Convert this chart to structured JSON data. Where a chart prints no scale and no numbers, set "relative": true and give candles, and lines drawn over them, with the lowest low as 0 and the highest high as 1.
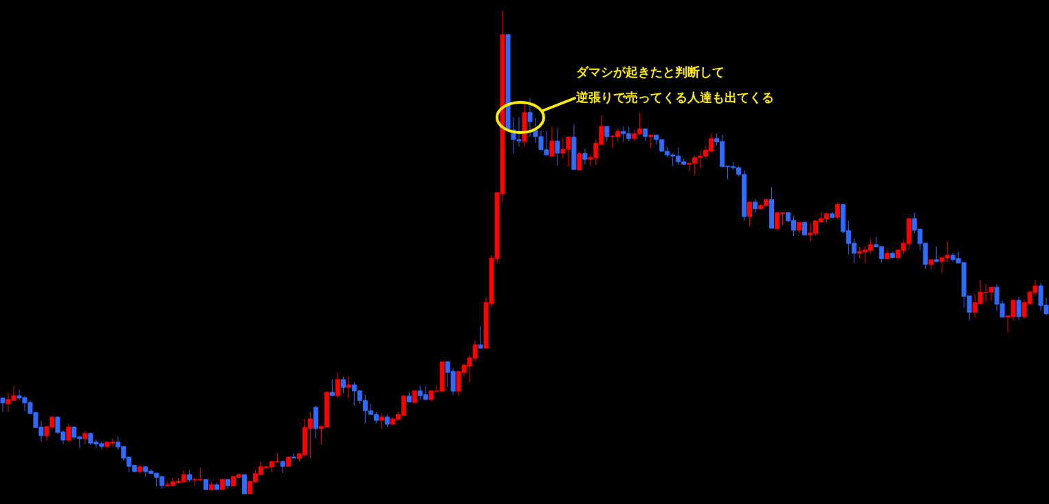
{
  "chart_data": {
    "type": "candlestick",
    "relative": true,
    "annotations": [
      "ダマシが起きたと判断して",
      "逆張りで売ってくる人達も出てくる"
    ],
    "categories": [
      null,
      null,
      null,
      null,
      null,
      null,
      null,
      null,
      null,
      null,
      null,
      null,
      null,
      null,
      null,
      null,
      null,
      null,
      null,
      null,
      null,
      null,
      null,
      null,
      null,
      null,
      null,
      null,
      null,
      null,
      null,
      null,
      null,
      null,
      null,
      null,
      null,
      null,
      null,
      null,
      null,
      null,
      null,
      null,
      null,
      null,
      null,
      null,
      null,
      null,
      null,
      null,
      null,
      null,
      null,
      null,
      null,
      null,
      null,
      null,
      null,
      null,
      null,
      null,
      null,
      null,
      null,
      null,
      null,
      null,
      null,
      null,
      null,
      null,
      null,
      null,
      null,
      null,
      null,
      null,
      null,
      null,
      null,
      null,
      null,
      null,
      null,
      null,
      null,
      null,
      null,
      null,
      null,
      null,
      null,
      null,
      null,
      null,
      null,
      null,
      null,
      null,
      null,
      null,
      null,
      null,
      null,
      null,
      null,
      null,
      null,
      null,
      null,
      null,
      null,
      null,
      null,
      null,
      null,
      null,
      null,
      null,
      null,
      null,
      null,
      null,
      null,
      null,
      null,
      null,
      null,
      null,
      null,
      null,
      null,
      null,
      null,
      null,
      null,
      null,
      null,
      null,
      null,
      null,
      null,
      null,
      null,
      null,
      null,
      null,
      null,
      null,
      null,
      null,
      null,
      null,
      null,
      null,
      null,
      null,
      null,
      null,
      null,
      null,
      null,
      null,
      null,
      null,
      null,
      null,
      null,
      null,
      null,
      null,
      null,
      null,
      null,
      null,
      null,
      null,
      null,
      null,
      null,
      null,
      null,
      null,
      null,
      null,
      null,
      null,
      null
    ],
    "ohlc": [
      [
        0.199,
        0.199,
        0.17,
        0.189
      ],
      [
        0.187,
        0.21,
        0.17,
        0.196
      ],
      [
        0.194,
        0.224,
        0.194,
        0.204
      ],
      [
        0.204,
        0.217,
        0.194,
        0.199
      ],
      [
        0.2,
        0.203,
        0.172,
        0.189
      ],
      [
        0.19,
        0.194,
        0.166,
        0.167
      ],
      [
        0.169,
        0.17,
        0.138,
        0.138
      ],
      [
        0.139,
        0.152,
        0.109,
        0.121
      ],
      [
        0.121,
        0.142,
        0.111,
        0.14
      ],
      [
        0.139,
        0.16,
        0.133,
        0.16
      ],
      [
        0.16,
        0.16,
        0.125,
        0.128
      ],
      [
        0.129,
        0.132,
        0.104,
        0.112
      ],
      [
        0.112,
        0.146,
        0.108,
        0.139
      ],
      [
        0.139,
        0.14,
        0.113,
        0.118
      ],
      [
        0.119,
        0.121,
        0.096,
        0.115
      ],
      [
        0.115,
        0.13,
        0.104,
        0.126
      ],
      [
        0.126,
        0.128,
        0.102,
        0.106
      ],
      [
        0.108,
        0.113,
        0.096,
        0.104
      ],
      [
        0.105,
        0.109,
        0.094,
        0.099
      ],
      [
        0.099,
        0.109,
        0.095,
        0.108
      ],
      [
        0.106,
        0.115,
        0.098,
        0.108
      ],
      [
        0.108,
        0.119,
        0.092,
        0.098
      ],
      [
        0.099,
        0.099,
        0.07,
        0.075
      ],
      [
        0.077,
        0.078,
        0.045,
        0.058
      ],
      [
        0.06,
        0.061,
        0.045,
        0.047
      ],
      [
        0.047,
        0.061,
        0.043,
        0.057
      ],
      [
        0.057,
        0.058,
        0.037,
        0.047
      ],
      [
        0.048,
        0.052,
        0.043,
        0.043
      ],
      [
        0.044,
        0.044,
        0.016,
        0.035
      ],
      [
        0.037,
        0.037,
        0.011,
        0.018
      ],
      [
        0.018,
        0.027,
        0.016,
        0.02
      ],
      [
        0.018,
        0.035,
        0.017,
        0.026
      ],
      [
        0.024,
        0.034,
        0.023,
        0.027
      ],
      [
        0.026,
        0.05,
        0.024,
        0.041
      ],
      [
        0.041,
        0.051,
        0.026,
        0.03
      ],
      [
        0.03,
        0.035,
        0.018,
        0.031
      ],
      [
        0.03,
        0.055,
        0.027,
        0.031
      ],
      [
        0.031,
        0.031,
        0.01,
        0.01
      ],
      [
        0.01,
        0.027,
        0.007,
        0.02
      ],
      [
        0.02,
        0.024,
        0.01,
        0.01
      ],
      [
        0.01,
        0.031,
        0.01,
        0.031
      ],
      [
        0.031,
        0.031,
        0.011,
        0.018
      ],
      [
        0.018,
        0.038,
        0.016,
        0.037
      ],
      [
        0.035,
        0.043,
        0.033,
        0.041
      ],
      [
        0.041,
        0.041,
        0.001,
        0.001
      ],
      [
        0.001,
        0.027,
        0,
        0.027
      ],
      [
        0.026,
        0.05,
        0.024,
        0.043
      ],
      [
        0.041,
        0.067,
        0.041,
        0.057
      ],
      [
        0.055,
        0.058,
        0.055,
        0.057
      ],
      [
        0.057,
        0.068,
        0.047,
        0.068
      ],
      [
        0.067,
        0.085,
        0.067,
        0.068
      ],
      [
        0.068,
        0.07,
        0.044,
        0.058
      ],
      [
        0.058,
        0.077,
        0.058,
        0.077
      ],
      [
        0.077,
        0.085,
        0.074,
        0.075
      ],
      [
        0.074,
        0.084,
        0.067,
        0.084
      ],
      [
        0.082,
        0.156,
        0.078,
        0.138
      ],
      [
        0.136,
        0.17,
        0.075,
        0.156
      ],
      [
        0.18,
        0.183,
        0.116,
        0.136
      ],
      [
        0.136,
        0.143,
        0.104,
        0.14
      ],
      [
        0.139,
        0.213,
        0.139,
        0.211
      ],
      [
        0.211,
        0.237,
        0.204,
        0.204
      ],
      [
        0.204,
        0.252,
        0.199,
        0.237
      ],
      [
        0.237,
        0.243,
        0.209,
        0.221
      ],
      [
        0.221,
        0.244,
        0.199,
        0.226
      ],
      [
        0.226,
        0.231,
        0.183,
        0.214
      ],
      [
        0.214,
        0.216,
        0.187,
        0.194
      ],
      [
        0.194,
        0.206,
        0.146,
        0.173
      ],
      [
        0.173,
        0.187,
        0.165,
        0.165
      ],
      [
        0.165,
        0.17,
        0.146,
        0.153
      ],
      [
        0.153,
        0.167,
        0.135,
        0.16
      ],
      [
        0.16,
        0.165,
        0.139,
        0.145
      ],
      [
        0.145,
        0.159,
        0.143,
        0.156
      ],
      [
        0.155,
        0.17,
        0.152,
        0.165
      ],
      [
        0.163,
        0.203,
        0.163,
        0.203
      ],
      [
        0.203,
        0.211,
        0.191,
        0.191
      ],
      [
        0.19,
        0.214,
        0.189,
        0.214
      ],
      [
        0.214,
        0.224,
        0.196,
        0.204
      ],
      [
        0.206,
        0.224,
        0.196,
        0.196
      ],
      [
        0.196,
        0.214,
        0.193,
        0.214
      ],
      [
        0.213,
        0.224,
        0.211,
        0.214
      ],
      [
        0.213,
        0.274,
        0.213,
        0.274
      ],
      [
        0.274,
        0.274,
        0.221,
        0.252
      ],
      [
        0.254,
        0.26,
        0.206,
        0.213
      ],
      [
        0.213,
        0.254,
        0.203,
        0.254
      ],
      [
        0.252,
        0.271,
        0.244,
        0.267
      ],
      [
        0.265,
        0.288,
        0.231,
        0.282
      ],
      [
        0.281,
        0.318,
        0.275,
        0.309
      ],
      [
        0.309,
        0.348,
        0.301,
        0.302
      ],
      [
        0.302,
        0.407,
        0.301,
        0.396
      ],
      [
        0.394,
        0.494,
        0.386,
        0.488
      ],
      [
        0.487,
        0.623,
        0.478,
        0.623
      ],
      [
        0.621,
        1,
        0.604,
        0.95
      ],
      [
        0.95,
        0.95,
        0.752,
        0.752
      ],
      [
        0.753,
        0.779,
        0.706,
        0.733
      ],
      [
        0.733,
        0.779,
        0.719,
        0.73
      ],
      [
        0.729,
        0.809,
        0.719,
        0.789
      ],
      [
        0.789,
        0.818,
        0.738,
        0.77
      ],
      [
        0.752,
        0.777,
        0.726,
        0.739
      ],
      [
        0.739,
        0.752,
        0.712,
        0.712
      ],
      [
        0.712,
        0.75,
        0.701,
        0.701
      ],
      [
        0.699,
        0.759,
        0.695,
        0.73
      ],
      [
        0.73,
        0.756,
        0.679,
        0.705
      ],
      [
        0.705,
        0.736,
        0.695,
        0.713
      ],
      [
        0.713,
        0.738,
        0.677,
        0.738
      ],
      [
        0.738,
        0.765,
        0.671,
        0.671
      ],
      [
        0.67,
        0.708,
        0.668,
        0.704
      ],
      [
        0.704,
        0.713,
        0.682,
        0.692
      ],
      [
        0.692,
        0.702,
        0.678,
        0.696
      ],
      [
        0.695,
        0.733,
        0.681,
        0.725
      ],
      [
        0.723,
        0.783,
        0.723,
        0.76
      ],
      [
        0.76,
        0.76,
        0.73,
        0.739
      ],
      [
        0.739,
        0.742,
        0.716,
        0.74
      ],
      [
        0.739,
        0.755,
        0.73,
        0.75
      ],
      [
        0.75,
        0.76,
        0.729,
        0.745
      ],
      [
        0.745,
        0.759,
        0.73,
        0.735
      ],
      [
        0.735,
        0.753,
        0.729,
        0.745
      ],
      [
        0.745,
        0.789,
        0.742,
        0.755
      ],
      [
        0.755,
        0.755,
        0.73,
        0.739
      ],
      [
        0.739,
        0.742,
        0.716,
        0.742
      ],
      [
        0.742,
        0.743,
        0.723,
        0.733
      ],
      [
        0.733,
        0.733,
        0.709,
        0.709
      ],
      [
        0.709,
        0.718,
        0.696,
        0.701
      ],
      [
        0.701,
        0.705,
        0.678,
        0.699
      ],
      [
        0.699,
        0.716,
        0.681,
        0.687
      ],
      [
        0.687,
        0.694,
        0.681,
        0.682
      ],
      [
        0.682,
        0.684,
        0.668,
        0.684
      ],
      [
        0.684,
        0.699,
        0.661,
        0.696
      ],
      [
        0.696,
        0.709,
        0.675,
        0.699
      ],
      [
        0.699,
        0.719,
        0.694,
        0.711
      ],
      [
        0.709,
        0.745,
        0.706,
        0.735
      ],
      [
        0.735,
        0.746,
        0.721,
        0.728
      ],
      [
        0.729,
        0.743,
        0.677,
        0.677
      ],
      [
        0.678,
        0.678,
        0.651,
        0.677
      ],
      [
        0.677,
        0.687,
        0.671,
        0.675
      ],
      [
        0.675,
        0.678,
        0.657,
        0.661
      ],
      [
        0.661,
        0.67,
        0.565,
        0.574
      ],
      [
        0.574,
        0.604,
        0.553,
        0.604
      ],
      [
        0.604,
        0.61,
        0.582,
        0.59
      ],
      [
        0.59,
        0.6,
        0.587,
        0.597
      ],
      [
        0.596,
        0.611,
        0.596,
        0.609
      ],
      [
        0.609,
        0.634,
        0.55,
        0.55
      ],
      [
        0.549,
        0.582,
        0.546,
        0.582
      ],
      [
        0.58,
        0.582,
        0.557,
        0.582
      ],
      [
        0.582,
        0.583,
        0.562,
        0.565
      ],
      [
        0.566,
        0.576,
        0.533,
        0.546
      ],
      [
        0.546,
        0.562,
        0.54,
        0.562
      ],
      [
        0.562,
        0.562,
        0.536,
        0.536
      ],
      [
        0.536,
        0.56,
        0.523,
        0.54
      ],
      [
        0.539,
        0.566,
        0.535,
        0.565
      ],
      [
        0.563,
        0.583,
        0.56,
        0.57
      ],
      [
        0.569,
        0.582,
        0.56,
        0.58
      ],
      [
        0.58,
        0.583,
        0.57,
        0.572
      ],
      [
        0.572,
        0.603,
        0.569,
        0.599
      ],
      [
        0.599,
        0.6,
        0.539,
        0.543
      ],
      [
        0.545,
        0.565,
        0.496,
        0.518
      ],
      [
        0.519,
        0.528,
        0.478,
        0.498
      ],
      [
        0.498,
        0.511,
        0.487,
        0.502
      ],
      [
        0.501,
        0.512,
        0.478,
        0.505
      ],
      [
        0.504,
        0.528,
        0.496,
        0.516
      ],
      [
        0.516,
        0.532,
        0.511,
        0.511
      ],
      [
        0.512,
        0.512,
        0.479,
        0.487
      ],
      [
        0.487,
        0.506,
        0.485,
        0.498
      ],
      [
        0.498,
        0.502,
        0.487,
        0.489
      ],
      [
        0.489,
        0.506,
        0.484,
        0.505
      ],
      [
        0.504,
        0.526,
        0.495,
        0.519
      ],
      [
        0.518,
        0.57,
        0.505,
        0.57
      ],
      [
        0.57,
        0.582,
        0.539,
        0.546
      ],
      [
        0.548,
        0.548,
        0.504,
        0.518
      ],
      [
        0.519,
        0.519,
        0.465,
        0.475
      ],
      [
        0.475,
        0.485,
        0.464,
        0.485
      ],
      [
        0.485,
        0.512,
        0.479,
        0.481
      ],
      [
        0.481,
        0.489,
        0.458,
        0.489
      ],
      [
        0.488,
        0.523,
        0.479,
        0.494
      ],
      [
        0.494,
        0.499,
        0.481,
        0.485
      ],
      [
        0.487,
        0.502,
        0.478,
        0.478
      ],
      [
        0.479,
        0.479,
        0.386,
        0.409
      ],
      [
        0.41,
        0.41,
        0.359,
        0.376
      ],
      [
        0.376,
        0.413,
        0.365,
        0.396
      ],
      [
        0.394,
        0.443,
        0.393,
        0.418
      ],
      [
        0.417,
        0.435,
        0.399,
        0.418
      ],
      [
        0.418,
        0.428,
        0.4,
        0.428
      ],
      [
        0.428,
        0.434,
        0.379,
        0.393
      ],
      [
        0.394,
        0.401,
        0.366,
        0.366
      ],
      [
        0.366,
        0.369,
        0.335,
        0.369
      ],
      [
        0.367,
        0.403,
        0.359,
        0.401
      ],
      [
        0.401,
        0.409,
        0.36,
        0.367
      ],
      [
        0.367,
        0.403,
        0.363,
        0.396
      ],
      [
        0.394,
        0.421,
        0.391,
        0.418
      ],
      [
        0.417,
        0.443,
        0.409,
        0.431
      ],
      [
        0.431,
        0.437,
        0.38,
        0.39
      ],
      [
        0.391,
        0.406,
        0.37,
        0.373
      ]
    ],
    "colors": [
      "#2e6bff",
      "#ff0000",
      "#ff0000",
      "#2e6bff",
      "#2e6bff",
      "#2e6bff",
      "#2e6bff",
      "#2e6bff",
      "#ff0000",
      "#ff0000",
      "#2e6bff",
      "#2e6bff",
      "#ff0000",
      "#2e6bff",
      "#2e6bff",
      "#ff0000",
      "#2e6bff",
      "#2e6bff",
      "#2e6bff",
      "#ff0000",
      "#ff0000",
      "#2e6bff",
      "#2e6bff",
      "#2e6bff",
      "#2e6bff",
      "#ff0000",
      "#2e6bff",
      "#2e6bff",
      "#2e6bff",
      "#2e6bff",
      "#ff0000",
      "#ff0000",
      "#ff0000",
      "#ff0000",
      "#2e6bff",
      "#ff0000",
      "#ff0000",
      "#2e6bff",
      "#ff0000",
      "#2e6bff",
      "#ff0000",
      "#2e6bff",
      "#ff0000",
      "#ff0000",
      "#2e6bff",
      "#ff0000",
      "#ff0000",
      "#ff0000",
      "#ff0000",
      "#ff0000",
      "#ff0000",
      "#2e6bff",
      "#ff0000",
      "#2e6bff",
      "#ff0000",
      "#ff0000",
      "#ff0000",
      "#2e6bff",
      "#ff0000",
      "#ff0000",
      "#2e6bff",
      "#ff0000",
      "#2e6bff",
      "#ff0000",
      "#2e6bff",
      "#2e6bff",
      "#2e6bff",
      "#2e6bff",
      "#2e6bff",
      "#ff0000",
      "#2e6bff",
      "#ff0000",
      "#ff0000",
      "#ff0000",
      "#2e6bff",
      "#ff0000",
      "#2e6bff",
      "#2e6bff",
      "#ff0000",
      "#ff0000",
      "#ff0000",
      "#2e6bff",
      "#2e6bff",
      "#ff0000",
      "#ff0000",
      "#ff0000",
      "#ff0000",
      "#2e6bff",
      "#ff0000",
      "#ff0000",
      "#ff0000",
      "#ff0000",
      "#2e6bff",
      "#2e6bff",
      "#2e6bff",
      "#ff0000",
      "#2e6bff",
      "#2e6bff",
      "#2e6bff",
      "#2e6bff",
      "#ff0000",
      "#2e6bff",
      "#ff0000",
      "#ff0000",
      "#2e6bff",
      "#ff0000",
      "#2e6bff",
      "#ff0000",
      "#ff0000",
      "#ff0000",
      "#2e6bff",
      "#ff0000",
      "#ff0000",
      "#2e6bff",
      "#2e6bff",
      "#ff0000",
      "#ff0000",
      "#2e6bff",
      "#ff0000",
      "#2e6bff",
      "#2e6bff",
      "#2e6bff",
      "#2e6bff",
      "#2e6bff",
      "#2e6bff",
      "#ff0000",
      "#ff0000",
      "#ff0000",
      "#ff0000",
      "#ff0000",
      "#2e6bff",
      "#2e6bff",
      "#2e6bff",
      "#2e6bff",
      "#2e6bff",
      "#2e6bff",
      "#ff0000",
      "#2e6bff",
      "#ff0000",
      "#ff0000",
      "#2e6bff",
      "#ff0000",
      "#ff0000",
      "#2e6bff",
      "#2e6bff",
      "#ff0000",
      "#2e6bff",
      "#ff0000",
      "#ff0000",
      "#ff0000",
      "#ff0000",
      "#2e6bff",
      "#ff0000",
      "#2e6bff",
      "#2e6bff",
      "#2e6bff",
      "#ff0000",
      "#ff0000",
      "#ff0000",
      "#2e6bff",
      "#2e6bff",
      "#ff0000",
      "#2e6bff",
      "#ff0000",
      "#ff0000",
      "#ff0000",
      "#2e6bff",
      "#2e6bff",
      "#2e6bff",
      "#ff0000",
      "#2e6bff",
      "#ff0000",
      "#ff0000",
      "#2e6bff",
      "#2e6bff",
      "#2e6bff",
      "#2e6bff",
      "#ff0000",
      "#ff0000",
      "#ff0000",
      "#ff0000",
      "#2e6bff",
      "#2e6bff",
      "#ff0000",
      "#ff0000",
      "#2e6bff",
      "#ff0000",
      "#ff0000",
      "#ff0000",
      "#2e6bff",
      "#2e6bff"
    ]
  }
}
